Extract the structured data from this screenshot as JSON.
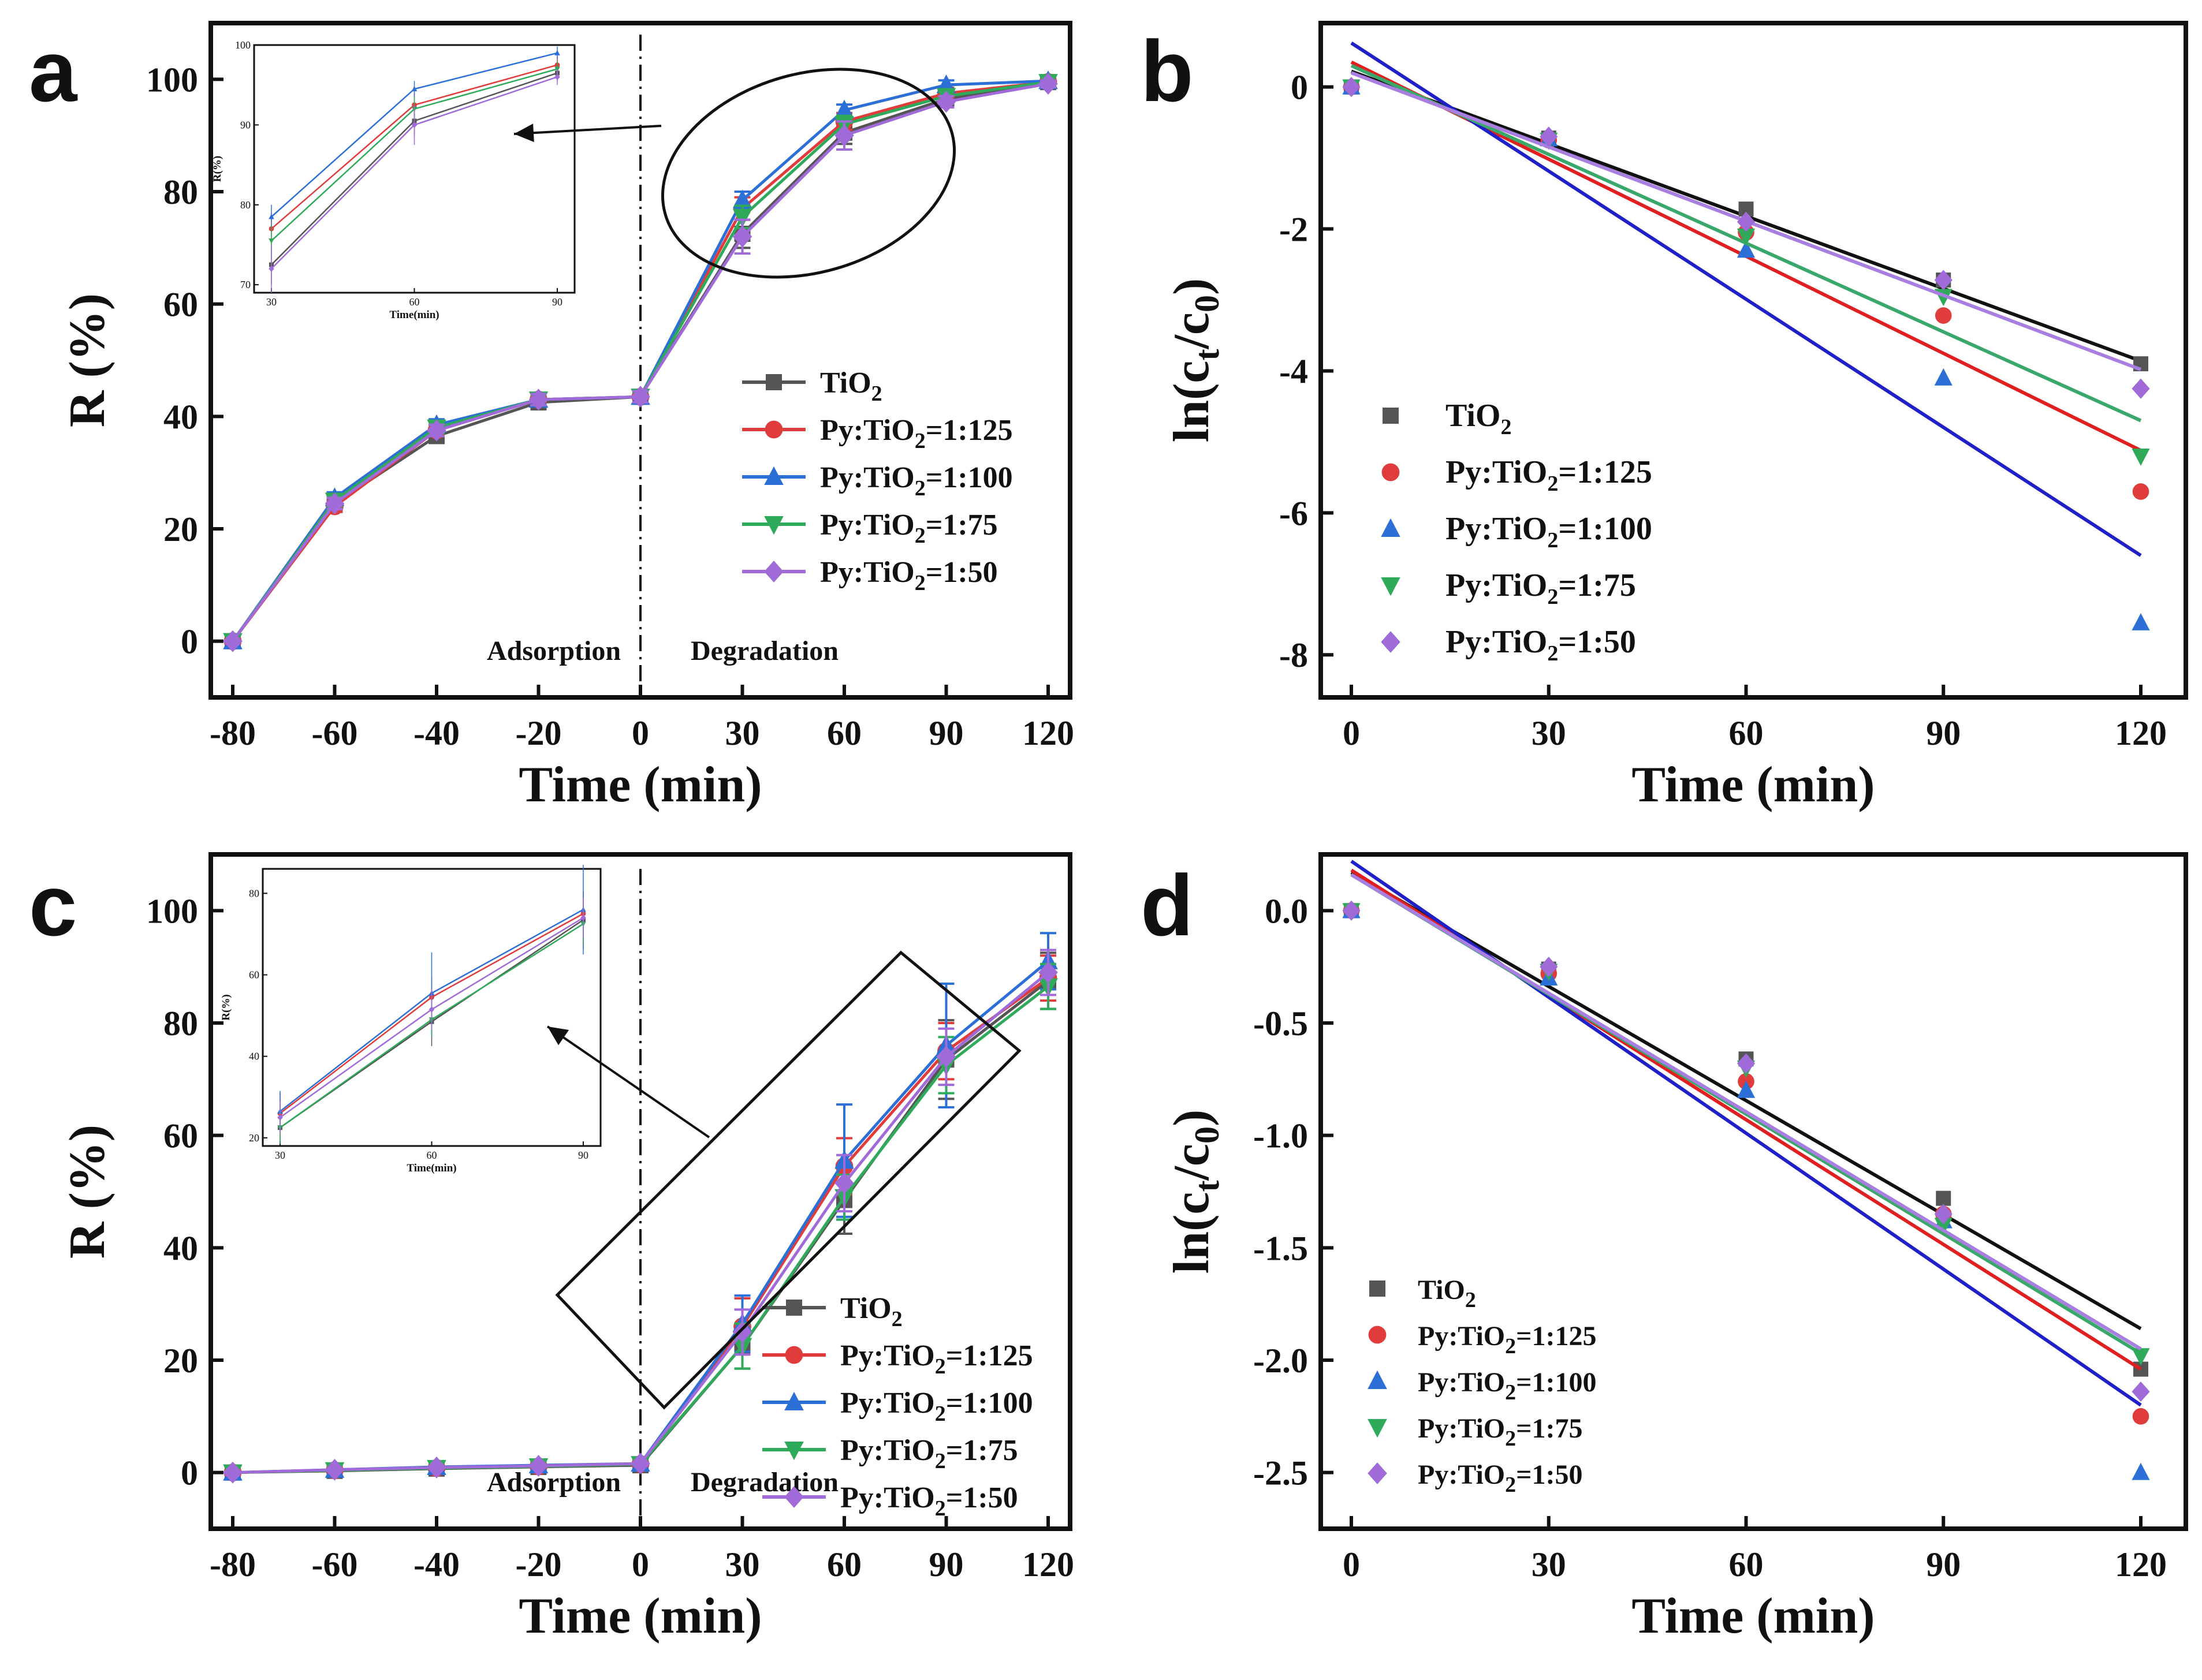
{
  "figure": {
    "series_names": [
      "TiO2",
      "Py:TiO2=1:125",
      "Py:TiO2=1:100",
      "Py:TiO2=1:75",
      "Py:TiO2=1:50"
    ],
    "series_colors": [
      "#555555",
      "#e03c3c",
      "#2c6fd6",
      "#2faa5a",
      "#a06bd8"
    ],
    "fit_colors": [
      "#111111",
      "#e02020",
      "#2020c8",
      "#3aa86a",
      "#a87ee0"
    ],
    "markers": [
      "square",
      "circle",
      "triangle-up",
      "triangle-down",
      "diamond"
    ]
  },
  "chart_data": [
    {
      "panel": "a",
      "type": "line",
      "xlabel": "Time (min)",
      "ylabel": "R (%)",
      "x": [
        -80,
        -60,
        -40,
        -20,
        0,
        30,
        60,
        90,
        120
      ],
      "xticks": [
        "-80",
        "-60",
        "-40",
        "-20",
        "0",
        "30",
        "60",
        "90",
        "120"
      ],
      "yticks": [
        0,
        20,
        40,
        60,
        80,
        100
      ],
      "ylim": [
        -10,
        110
      ],
      "divider_label_left": "Adsorption",
      "divider_label_right": "Degradation",
      "series": [
        {
          "name": "TiO2",
          "values": [
            0,
            24.5,
            36.5,
            42.5,
            43.5,
            72.5,
            90.5,
            96.5,
            99.5
          ],
          "err": [
            0,
            1,
            1,
            1,
            1,
            2.5,
            2,
            1,
            0.5
          ]
        },
        {
          "name": "Py:TiO2=1:125",
          "values": [
            0,
            24,
            37.5,
            43,
            43.5,
            77,
            92.5,
            97.5,
            99.5
          ],
          "err": [
            0,
            1,
            1,
            1,
            1,
            2,
            1.5,
            1,
            0.5
          ]
        },
        {
          "name": "Py:TiO2=1:100",
          "values": [
            0,
            25.5,
            38.5,
            43,
            43.5,
            78.5,
            94.5,
            99,
            99.7
          ],
          "err": [
            0,
            1,
            1,
            1,
            1,
            1.5,
            1,
            0.8,
            0.3
          ]
        },
        {
          "name": "Py:TiO2=1:75",
          "values": [
            0,
            25,
            38,
            43,
            43.5,
            75.5,
            92,
            97,
            99.5
          ],
          "err": [
            0,
            1,
            1,
            1,
            1,
            2,
            1.5,
            1,
            0.5
          ]
        },
        {
          "name": "Py:TiO2=1:50",
          "values": [
            0,
            24.5,
            37.5,
            43,
            43.5,
            72,
            90,
            96,
            99.2
          ],
          "err": [
            0,
            1,
            1,
            1,
            1,
            3,
            2.5,
            1,
            0.6
          ]
        }
      ],
      "inset": {
        "xlabel": "Time(min)",
        "ylabel": "R(%)",
        "x": [
          30,
          60,
          90
        ],
        "xticks": [
          "30",
          "60",
          "90"
        ],
        "yticks": [
          70,
          80,
          90,
          100
        ],
        "ylim": [
          69,
          100
        ]
      }
    },
    {
      "panel": "b",
      "type": "scatter",
      "xlabel": "Time (min)",
      "ylabel": "ln(ct/c0)",
      "x": [
        0,
        30,
        60,
        90,
        120
      ],
      "xticks": [
        "0",
        "30",
        "60",
        "90",
        "120"
      ],
      "yticks": [
        "0",
        "-2",
        "-4",
        "-6",
        "-8"
      ],
      "ylim": [
        -8.6,
        0.9
      ],
      "series": [
        {
          "name": "TiO2",
          "values": [
            0,
            -0.72,
            -1.72,
            -2.72,
            -3.9
          ],
          "fit": [
            0.22,
            -3.86
          ]
        },
        {
          "name": "Py:TiO2=1:125",
          "values": [
            0,
            -0.75,
            -2.05,
            -3.22,
            -5.7
          ],
          "fit": [
            0.35,
            -5.12
          ]
        },
        {
          "name": "Py:TiO2=1:100",
          "values": [
            0,
            -0.73,
            -2.3,
            -4.1,
            -7.55
          ],
          "fit": [
            0.62,
            -6.6
          ]
        },
        {
          "name": "Py:TiO2=1:75",
          "values": [
            0,
            -0.75,
            -2.1,
            -2.95,
            -5.2
          ],
          "fit": [
            0.3,
            -4.7
          ]
        },
        {
          "name": "Py:TiO2=1:50",
          "values": [
            0,
            -0.7,
            -1.9,
            -2.72,
            -4.25
          ],
          "fit": [
            0.2,
            -3.98
          ]
        }
      ]
    },
    {
      "panel": "c",
      "type": "line",
      "xlabel": "Time (min)",
      "ylabel": "R (%)",
      "x": [
        -80,
        -60,
        -40,
        -20,
        0,
        30,
        60,
        90,
        120
      ],
      "xticks": [
        "-80",
        "-60",
        "-40",
        "-20",
        "0",
        "30",
        "60",
        "90",
        "120"
      ],
      "yticks": [
        0,
        20,
        40,
        60,
        80,
        100
      ],
      "ylim": [
        -10,
        110
      ],
      "divider_label_left": "Adsorption",
      "divider_label_right": "Degradation",
      "series": [
        {
          "name": "TiO2",
          "values": [
            0,
            0.3,
            0.7,
            1,
            1.3,
            22.5,
            48.5,
            73.5,
            87.5
          ],
          "err": [
            0,
            0.3,
            0.3,
            0.3,
            0.3,
            4,
            6,
            7,
            5
          ]
        },
        {
          "name": "Py:TiO2=1:125",
          "values": [
            0,
            0.4,
            0.8,
            1.1,
            1.5,
            26,
            54.5,
            75,
            88
          ],
          "err": [
            0,
            0.3,
            0.3,
            0.3,
            0.3,
            5,
            5,
            5,
            4
          ]
        },
        {
          "name": "Py:TiO2=1:100",
          "values": [
            0,
            0.5,
            1,
            1.3,
            1.6,
            26.5,
            55.5,
            76,
            91
          ],
          "err": [
            0,
            0.3,
            0.3,
            0.3,
            0.3,
            5,
            10,
            11,
            5
          ]
        },
        {
          "name": "Py:TiO2=1:75",
          "values": [
            0,
            0.4,
            0.8,
            1.1,
            1.5,
            22.5,
            49,
            72.5,
            86.5
          ],
          "err": [
            0,
            0.3,
            0.3,
            0.3,
            0.3,
            4,
            4,
            5,
            4
          ]
        },
        {
          "name": "Py:TiO2=1:50",
          "values": [
            0,
            0.5,
            0.9,
            1.2,
            1.6,
            25,
            51.5,
            74,
            89
          ],
          "err": [
            0,
            0.3,
            0.3,
            0.3,
            0.3,
            4,
            5,
            5,
            4
          ]
        }
      ],
      "inset": {
        "xlabel": "Time(min)",
        "ylabel": "R(%)",
        "x": [
          30,
          60,
          90
        ],
        "xticks": [
          "30",
          "60",
          "90"
        ],
        "yticks": [
          20,
          40,
          60,
          80
        ],
        "ylim": [
          18,
          86
        ]
      }
    },
    {
      "panel": "d",
      "type": "scatter",
      "xlabel": "Time (min)",
      "ylabel": "ln(ct/c0)",
      "x": [
        0,
        30,
        60,
        90,
        120
      ],
      "xticks": [
        "0",
        "30",
        "60",
        "90",
        "120"
      ],
      "yticks": [
        "0.0",
        "-0.5",
        "-1.0",
        "-1.5",
        "-2.0",
        "-2.5"
      ],
      "ylim": [
        -2.75,
        0.25
      ],
      "series": [
        {
          "name": "TiO2",
          "values": [
            0,
            -0.26,
            -0.66,
            -1.28,
            -2.04
          ],
          "fit": [
            0.17,
            -1.86
          ]
        },
        {
          "name": "Py:TiO2=1:125",
          "values": [
            0,
            -0.28,
            -0.76,
            -1.35,
            -2.25
          ],
          "fit": [
            0.18,
            -2.04
          ]
        },
        {
          "name": "Py:TiO2=1:100",
          "values": [
            0,
            -0.3,
            -0.8,
            -1.38,
            -2.5
          ],
          "fit": [
            0.22,
            -2.2
          ]
        },
        {
          "name": "Py:TiO2=1:75",
          "values": [
            0,
            -0.27,
            -0.7,
            -1.4,
            -1.98
          ],
          "fit": [
            0.16,
            -1.97
          ]
        },
        {
          "name": "Py:TiO2=1:50",
          "values": [
            0,
            -0.25,
            -0.68,
            -1.35,
            -2.14
          ],
          "fit": [
            0.16,
            -1.95
          ]
        }
      ]
    }
  ]
}
